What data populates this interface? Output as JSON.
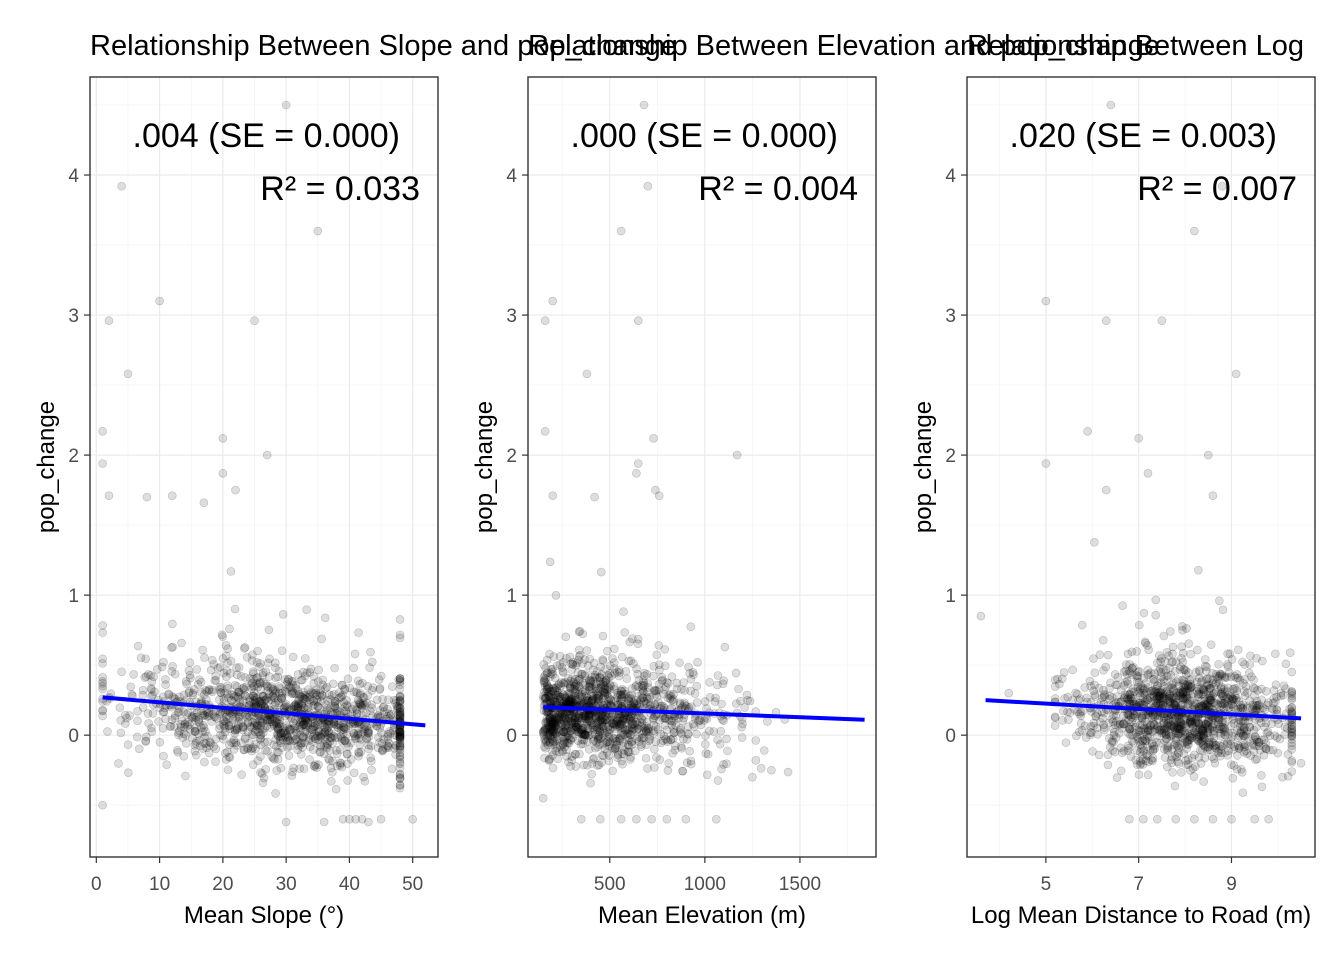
{
  "chart_data": [
    {
      "type": "scatter",
      "title": "Relationship Between Slope and pop_change",
      "xlabel": "Mean Slope (°)",
      "ylabel": "pop_change",
      "xlim": [
        -1,
        54
      ],
      "ylim": [
        -0.87,
        4.7
      ],
      "xticks": [
        0,
        10,
        20,
        30,
        40,
        50
      ],
      "yticks": [
        0,
        1,
        2,
        3,
        4
      ],
      "annotation_coef": ".004 (SE = 0.000)",
      "annotation_r2": "R² = 0.033",
      "fit_line": {
        "x": [
          1,
          52
        ],
        "y": [
          0.27,
          0.07
        ],
        "color": "#0000ff"
      },
      "dense_cloud": {
        "x_range": [
          1,
          48
        ],
        "y_mean": 0.18,
        "y_sd": 0.17
      },
      "outliers": [
        {
          "x": 30,
          "y": 4.5
        },
        {
          "x": 4,
          "y": 3.92
        },
        {
          "x": 35,
          "y": 3.6
        },
        {
          "x": 10,
          "y": 3.1
        },
        {
          "x": 2,
          "y": 2.96
        },
        {
          "x": 25,
          "y": 2.96
        },
        {
          "x": 5,
          "y": 2.58
        },
        {
          "x": 1,
          "y": 2.17
        },
        {
          "x": 20,
          "y": 2.12
        },
        {
          "x": 27,
          "y": 2.0
        },
        {
          "x": 1,
          "y": 1.94
        },
        {
          "x": 20,
          "y": 1.87
        },
        {
          "x": 22,
          "y": 1.75
        },
        {
          "x": 2,
          "y": 1.71
        },
        {
          "x": 8,
          "y": 1.7
        },
        {
          "x": 12,
          "y": 1.71
        },
        {
          "x": 17,
          "y": 1.66
        },
        {
          "x": 30,
          "y": -0.62
        },
        {
          "x": 36,
          "y": -0.62
        },
        {
          "x": 39,
          "y": -0.6
        },
        {
          "x": 40,
          "y": -0.6
        },
        {
          "x": 41,
          "y": -0.6
        },
        {
          "x": 42,
          "y": -0.6
        },
        {
          "x": 43,
          "y": -0.62
        },
        {
          "x": 45,
          "y": -0.6
        },
        {
          "x": 50,
          "y": -0.6
        },
        {
          "x": 1,
          "y": -0.5
        }
      ]
    },
    {
      "type": "scatter",
      "title": "Relationship Between Elevation and pop_change",
      "xlabel": "Mean Elevation (m)",
      "ylabel": "pop_change",
      "xlim": [
        70,
        1900
      ],
      "ylim": [
        -0.87,
        4.7
      ],
      "xticks": [
        500,
        1000,
        1500
      ],
      "yticks": [
        0,
        1,
        2,
        3,
        4
      ],
      "annotation_coef": ".000 (SE = 0.000)",
      "annotation_r2": "R² = 0.004",
      "fit_line": {
        "x": [
          150,
          1840
        ],
        "y": [
          0.2,
          0.11
        ],
        "color": "#0000ff"
      },
      "dense_cloud": {
        "x_range": [
          150,
          1500
        ],
        "y_mean": 0.15,
        "y_sd": 0.16
      },
      "outliers": [
        {
          "x": 680,
          "y": 4.5
        },
        {
          "x": 700,
          "y": 3.92
        },
        {
          "x": 560,
          "y": 3.6
        },
        {
          "x": 200,
          "y": 3.1
        },
        {
          "x": 160,
          "y": 2.96
        },
        {
          "x": 650,
          "y": 2.96
        },
        {
          "x": 380,
          "y": 2.58
        },
        {
          "x": 160,
          "y": 2.17
        },
        {
          "x": 730,
          "y": 2.12
        },
        {
          "x": 1170,
          "y": 2.0
        },
        {
          "x": 650,
          "y": 1.94
        },
        {
          "x": 640,
          "y": 1.87
        },
        {
          "x": 740,
          "y": 1.75
        },
        {
          "x": 200,
          "y": 1.71
        },
        {
          "x": 420,
          "y": 1.7
        },
        {
          "x": 760,
          "y": 1.71
        },
        {
          "x": 350,
          "y": -0.6
        },
        {
          "x": 450,
          "y": -0.6
        },
        {
          "x": 560,
          "y": -0.6
        },
        {
          "x": 640,
          "y": -0.6
        },
        {
          "x": 720,
          "y": -0.6
        },
        {
          "x": 800,
          "y": -0.6
        },
        {
          "x": 900,
          "y": -0.6
        },
        {
          "x": 1060,
          "y": -0.6
        },
        {
          "x": 1250,
          "y": -0.3
        },
        {
          "x": 1350,
          "y": -0.25
        },
        {
          "x": 150,
          "y": -0.45
        }
      ]
    },
    {
      "type": "scatter",
      "title": "Relationship Between Log",
      "xlabel": "Log Mean Distance to Road (m)",
      "ylabel": "pop_change",
      "xlim": [
        3.3,
        10.8
      ],
      "ylim": [
        -0.87,
        4.7
      ],
      "xticks": [
        5,
        7,
        9
      ],
      "yticks": [
        0,
        1,
        2,
        3,
        4
      ],
      "annotation_coef": ".020 (SE = 0.003)",
      "annotation_r2": "R² = 0.007",
      "fit_line": {
        "x": [
          3.7,
          10.5
        ],
        "y": [
          0.25,
          0.12
        ],
        "color": "#0000ff"
      },
      "dense_cloud": {
        "x_range": [
          5.2,
          10.3
        ],
        "y_mean": 0.14,
        "y_sd": 0.17
      },
      "outliers": [
        {
          "x": 6.4,
          "y": 4.5
        },
        {
          "x": 8.8,
          "y": 3.92
        },
        {
          "x": 8.2,
          "y": 3.6
        },
        {
          "x": 5.0,
          "y": 3.1
        },
        {
          "x": 6.3,
          "y": 2.96
        },
        {
          "x": 7.5,
          "y": 2.96
        },
        {
          "x": 9.1,
          "y": 2.58
        },
        {
          "x": 5.9,
          "y": 2.17
        },
        {
          "x": 7.0,
          "y": 2.12
        },
        {
          "x": 8.5,
          "y": 2.0
        },
        {
          "x": 5.0,
          "y": 1.94
        },
        {
          "x": 7.2,
          "y": 1.87
        },
        {
          "x": 6.3,
          "y": 1.75
        },
        {
          "x": 8.6,
          "y": 1.71
        },
        {
          "x": 3.6,
          "y": 0.85
        },
        {
          "x": 4.2,
          "y": 0.3
        },
        {
          "x": 6.8,
          "y": -0.6
        },
        {
          "x": 7.1,
          "y": -0.6
        },
        {
          "x": 7.4,
          "y": -0.6
        },
        {
          "x": 7.8,
          "y": -0.6
        },
        {
          "x": 8.2,
          "y": -0.6
        },
        {
          "x": 8.6,
          "y": -0.6
        },
        {
          "x": 9.0,
          "y": -0.6
        },
        {
          "x": 9.5,
          "y": -0.6
        },
        {
          "x": 9.8,
          "y": -0.6
        },
        {
          "x": 10.5,
          "y": -0.2
        },
        {
          "x": 10.1,
          "y": -0.3
        }
      ]
    }
  ]
}
